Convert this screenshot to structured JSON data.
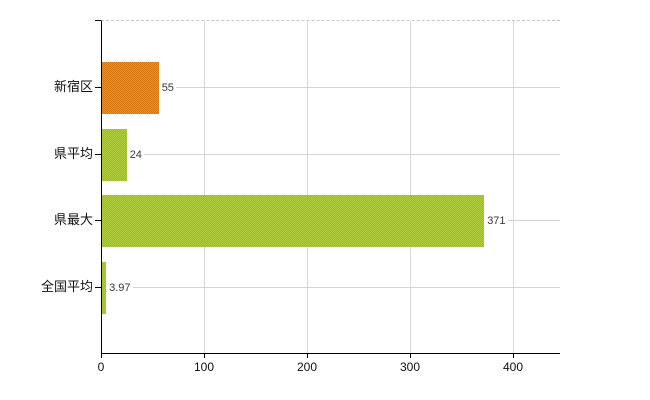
{
  "chart_data": {
    "type": "bar",
    "orientation": "horizontal",
    "title": "",
    "xlabel": "",
    "ylabel": "",
    "categories": [
      "新宿区",
      "県平均",
      "県最大",
      "全国平均"
    ],
    "values": [
      55,
      24,
      371,
      3.97
    ],
    "value_labels": [
      "55",
      "24",
      "371",
      "3.97"
    ],
    "bar_colors": [
      [
        "#eb8d26",
        "#d87813"
      ],
      [
        "#adcb3d",
        "#97bf2e"
      ],
      [
        "#adcb3d",
        "#97bf2e"
      ],
      [
        "#adcb3d",
        "#97bf2e"
      ]
    ],
    "x_tick_labels": [
      "0",
      "100",
      "200",
      "300",
      "400"
    ],
    "x_tick_values": [
      0,
      100,
      200,
      300,
      400
    ],
    "xlim": [
      0,
      445.6
    ],
    "grid": true,
    "legend": false,
    "style": {
      "axis_color": "#000000",
      "vgrid_color": "#d9d9d9",
      "hgrid_color": "#d4d4d4",
      "top_border_color": "#c8c8c8",
      "category_label_color": "#111111",
      "value_label_color": "#3a3a3a",
      "background": "#ffffff"
    }
  }
}
